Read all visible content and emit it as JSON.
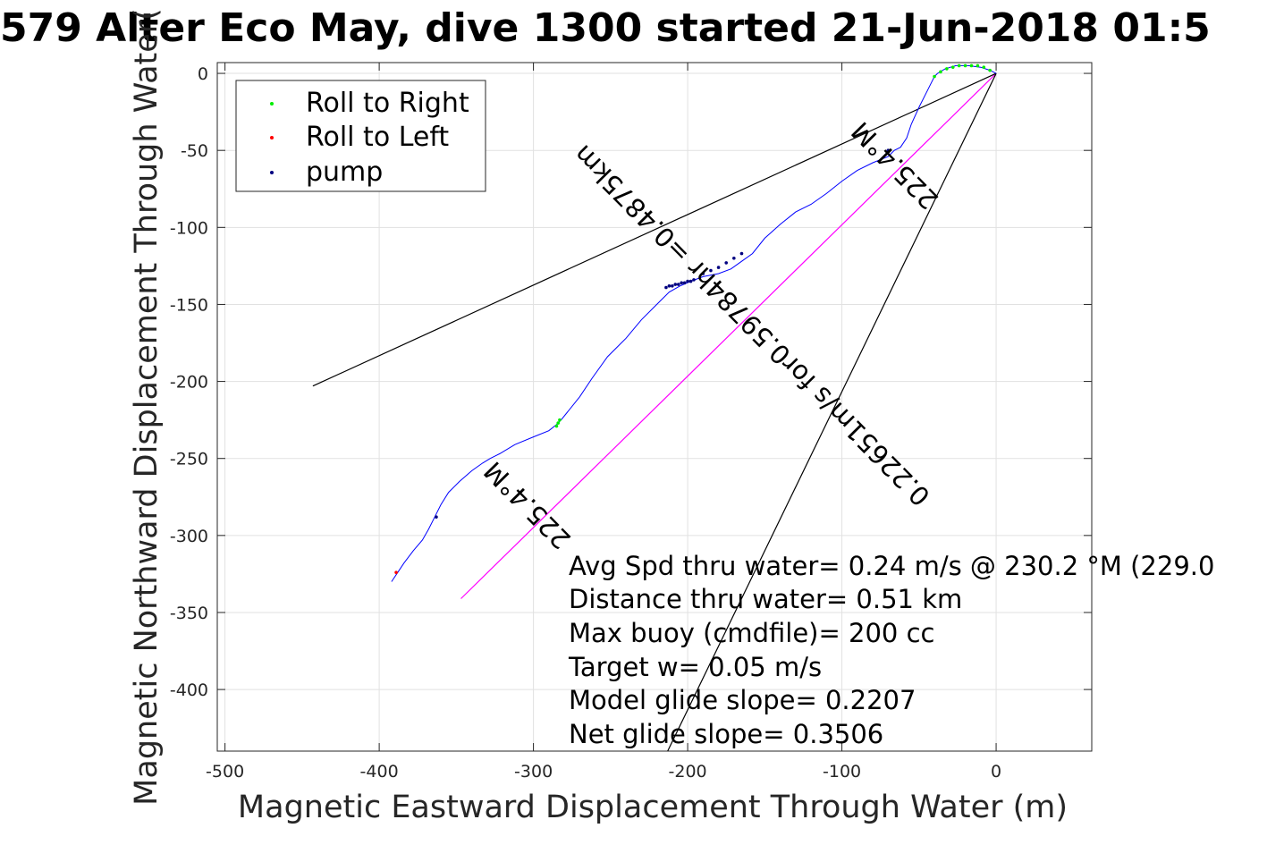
{
  "chart_data": {
    "type": "line",
    "title": "579 Alter Eco May, dive 1300 started 21-Jun-2018 01:5",
    "xlabel": "Magnetic Eastward Displacement Through Water (m)",
    "ylabel": "Magnetic Northward Displacement Through Water(",
    "xlim": [
      -505,
      62
    ],
    "ylim": [
      -440,
      7
    ],
    "xticks": [
      -500,
      -400,
      -300,
      -200,
      -100,
      0
    ],
    "yticks": [
      0,
      -50,
      -100,
      -150,
      -200,
      -250,
      -300,
      -350,
      -400
    ],
    "xtick_labels": [
      "-500",
      "-400",
      "-300",
      "-200",
      "-100",
      "0"
    ],
    "ytick_labels": [
      "0",
      "-50",
      "-100",
      "-150",
      "-200",
      "-250",
      "-300",
      "-350",
      "-400"
    ],
    "grid": true,
    "legend_position": "top-left",
    "legend": [
      {
        "label": "Roll to Right",
        "color": "#00ee00"
      },
      {
        "label": "Roll to Left",
        "color": "#ff0000"
      },
      {
        "label": "pump",
        "color": "#000080"
      }
    ],
    "series": [
      {
        "role": "track",
        "color": "#0000ff",
        "x": [
          0,
          -4,
          -10,
          -18,
          -26,
          -33,
          -38,
          -40,
          -44,
          -50,
          -55,
          -58,
          -62,
          -66,
          -70,
          -80,
          -90,
          -100,
          -110,
          -120,
          -130,
          -140,
          -150,
          -158,
          -165,
          -172,
          -180,
          -190,
          -198,
          -205,
          -212,
          -220,
          -230,
          -240,
          -252,
          -262,
          -270,
          -278,
          -282,
          -285,
          -290,
          -300,
          -312,
          -322,
          -328,
          -333,
          -340,
          -348,
          -355,
          -360,
          -364,
          -368,
          -372,
          -378,
          -384,
          -388,
          -392
        ],
        "y": [
          0,
          2,
          4,
          5,
          5,
          3,
          0,
          -2,
          -10,
          -22,
          -33,
          -42,
          -48,
          -50,
          -54,
          -58,
          -63,
          -70,
          -78,
          -85,
          -90,
          -98,
          -107,
          -117,
          -122,
          -127,
          -130,
          -132,
          -135,
          -138,
          -142,
          -150,
          -160,
          -172,
          -184,
          -198,
          -210,
          -220,
          -225,
          -228,
          -232,
          -236,
          -241,
          -247,
          -250,
          -253,
          -258,
          -265,
          -272,
          -280,
          -288,
          -296,
          -303,
          -310,
          -318,
          -324,
          -330
        ]
      },
      {
        "role": "heading_line",
        "color": "#ff00ff",
        "x": [
          0,
          -347
        ],
        "y": [
          0,
          -341
        ]
      },
      {
        "role": "reference_line",
        "color": "#000000",
        "x": [
          0,
          -443
        ],
        "y": [
          0,
          -203
        ]
      },
      {
        "role": "reference_line",
        "color": "#000000",
        "x": [
          0,
          -213
        ],
        "y": [
          0,
          -440
        ]
      }
    ],
    "markers": {
      "roll_right": {
        "color": "#00ee00",
        "x": [
          -40,
          -36,
          -32,
          -28,
          -24,
          -20,
          -16,
          -12,
          -8,
          -4,
          -285,
          -284,
          -283
        ],
        "y": [
          -2,
          1,
          3,
          4,
          5,
          5,
          5,
          5,
          4,
          2,
          -229,
          -227,
          -225
        ]
      },
      "roll_left": {
        "color": "#ff0000",
        "x": [
          -389
        ],
        "y": [
          -324
        ]
      },
      "pump": {
        "color": "#000080",
        "x": [
          -70,
          -196,
          -198,
          -200,
          -202,
          -204,
          -206,
          -208,
          -210,
          -212,
          -214,
          -165,
          -170,
          -175,
          -180,
          -185,
          -190,
          -363
        ],
        "y": [
          -50,
          -134,
          -135,
          -135,
          -136,
          -136,
          -137,
          -137,
          -138,
          -138,
          -139,
          -117,
          -120,
          -123,
          -126,
          -128,
          -130,
          -288
        ]
      }
    },
    "annotations": {
      "stats": [
        "Avg Spd thru water=  0.24 m/s @ 230.2 °M (229.0",
        "Distance thru water=  0.51 km",
        "Max buoy (cmdfile)= 200 cc",
        "Target w= 0.05 m/s",
        "Model glide slope= 0.2207",
        "Net glide slope= 0.3506"
      ],
      "heading_top": "225.4°M",
      "heading_bottom": "225.4°M",
      "speed_along_line": "0.22651m/s for0.59784hr =0.4875km"
    }
  }
}
